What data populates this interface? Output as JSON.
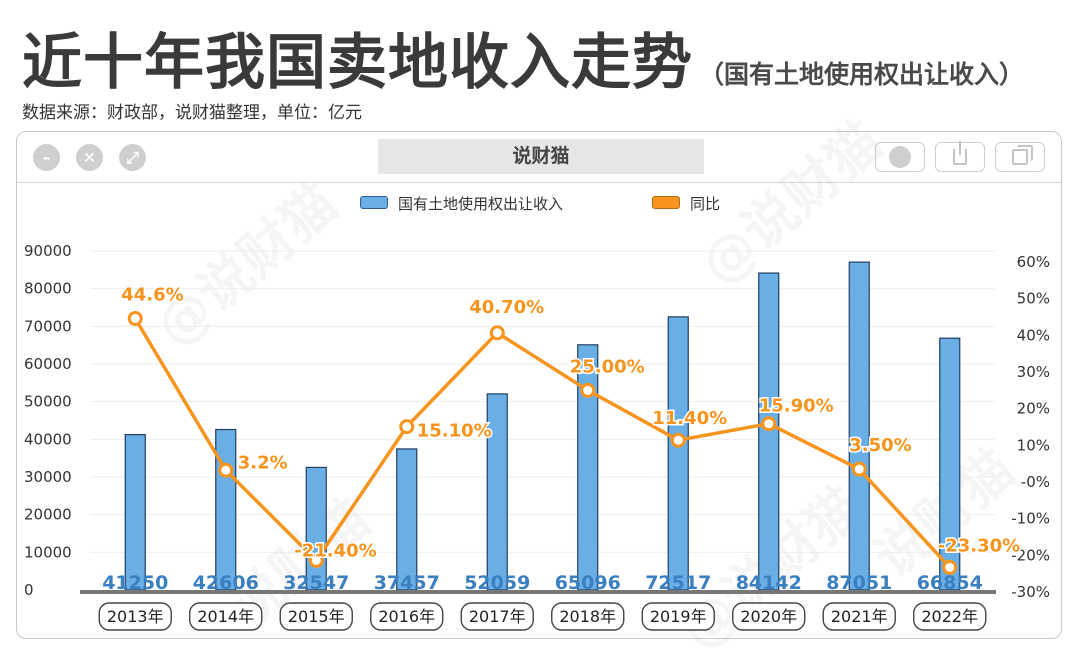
{
  "title": "近十年我国卖地收入走势",
  "subtitle": "（国有土地使用权出让收入）",
  "source": "数据来源：财政部，说财猫整理，单位：亿元",
  "window": {
    "title": "说财猫"
  },
  "watermarks": [
    "@说财猫",
    "@说财猫",
    "说财猫",
    "@说财猫",
    "说财猫"
  ],
  "chart_data": {
    "type": "bar+line",
    "categories": [
      "2013年",
      "2014年",
      "2015年",
      "2016年",
      "2017年",
      "2018年",
      "2019年",
      "2020年",
      "2021年",
      "2022年"
    ],
    "series": [
      {
        "name": "国有土地使用权出让收入",
        "type": "bar",
        "axis": "left",
        "color": "#6aaee6",
        "values": [
          41250,
          42606,
          32547,
          37457,
          52059,
          65096,
          72517,
          84142,
          87051,
          66854
        ],
        "data_labels": [
          "41250",
          "42606",
          "32547",
          "37457",
          "52059",
          "65096",
          "72517",
          "84142",
          "87051",
          "66854"
        ]
      },
      {
        "name": "同比",
        "type": "line",
        "axis": "right",
        "color": "#f7941d",
        "values": [
          44.6,
          3.2,
          -21.4,
          15.1,
          40.7,
          25.0,
          11.4,
          15.9,
          3.5,
          -23.3
        ],
        "data_labels": [
          "44.6%",
          "3.2%",
          "-21.40%",
          "15.10%",
          "40.70%",
          "25.00%",
          "11.40%",
          "15.90%",
          "3.50%",
          "-23.30%"
        ]
      }
    ],
    "y_left": {
      "ticks": [
        "90000",
        "80000",
        "70000",
        "60000",
        "50000",
        "40000",
        "30000",
        "20000",
        "10000",
        "0"
      ],
      "range": [
        0,
        90000
      ]
    },
    "y_right": {
      "ticks": [
        "60%",
        "50%",
        "40%",
        "30%",
        "20%",
        "10%",
        "-0%",
        "-10%",
        "-20%",
        "-30%"
      ],
      "range": [
        -30,
        60
      ]
    },
    "legend_position": "top-center",
    "grid": true
  }
}
